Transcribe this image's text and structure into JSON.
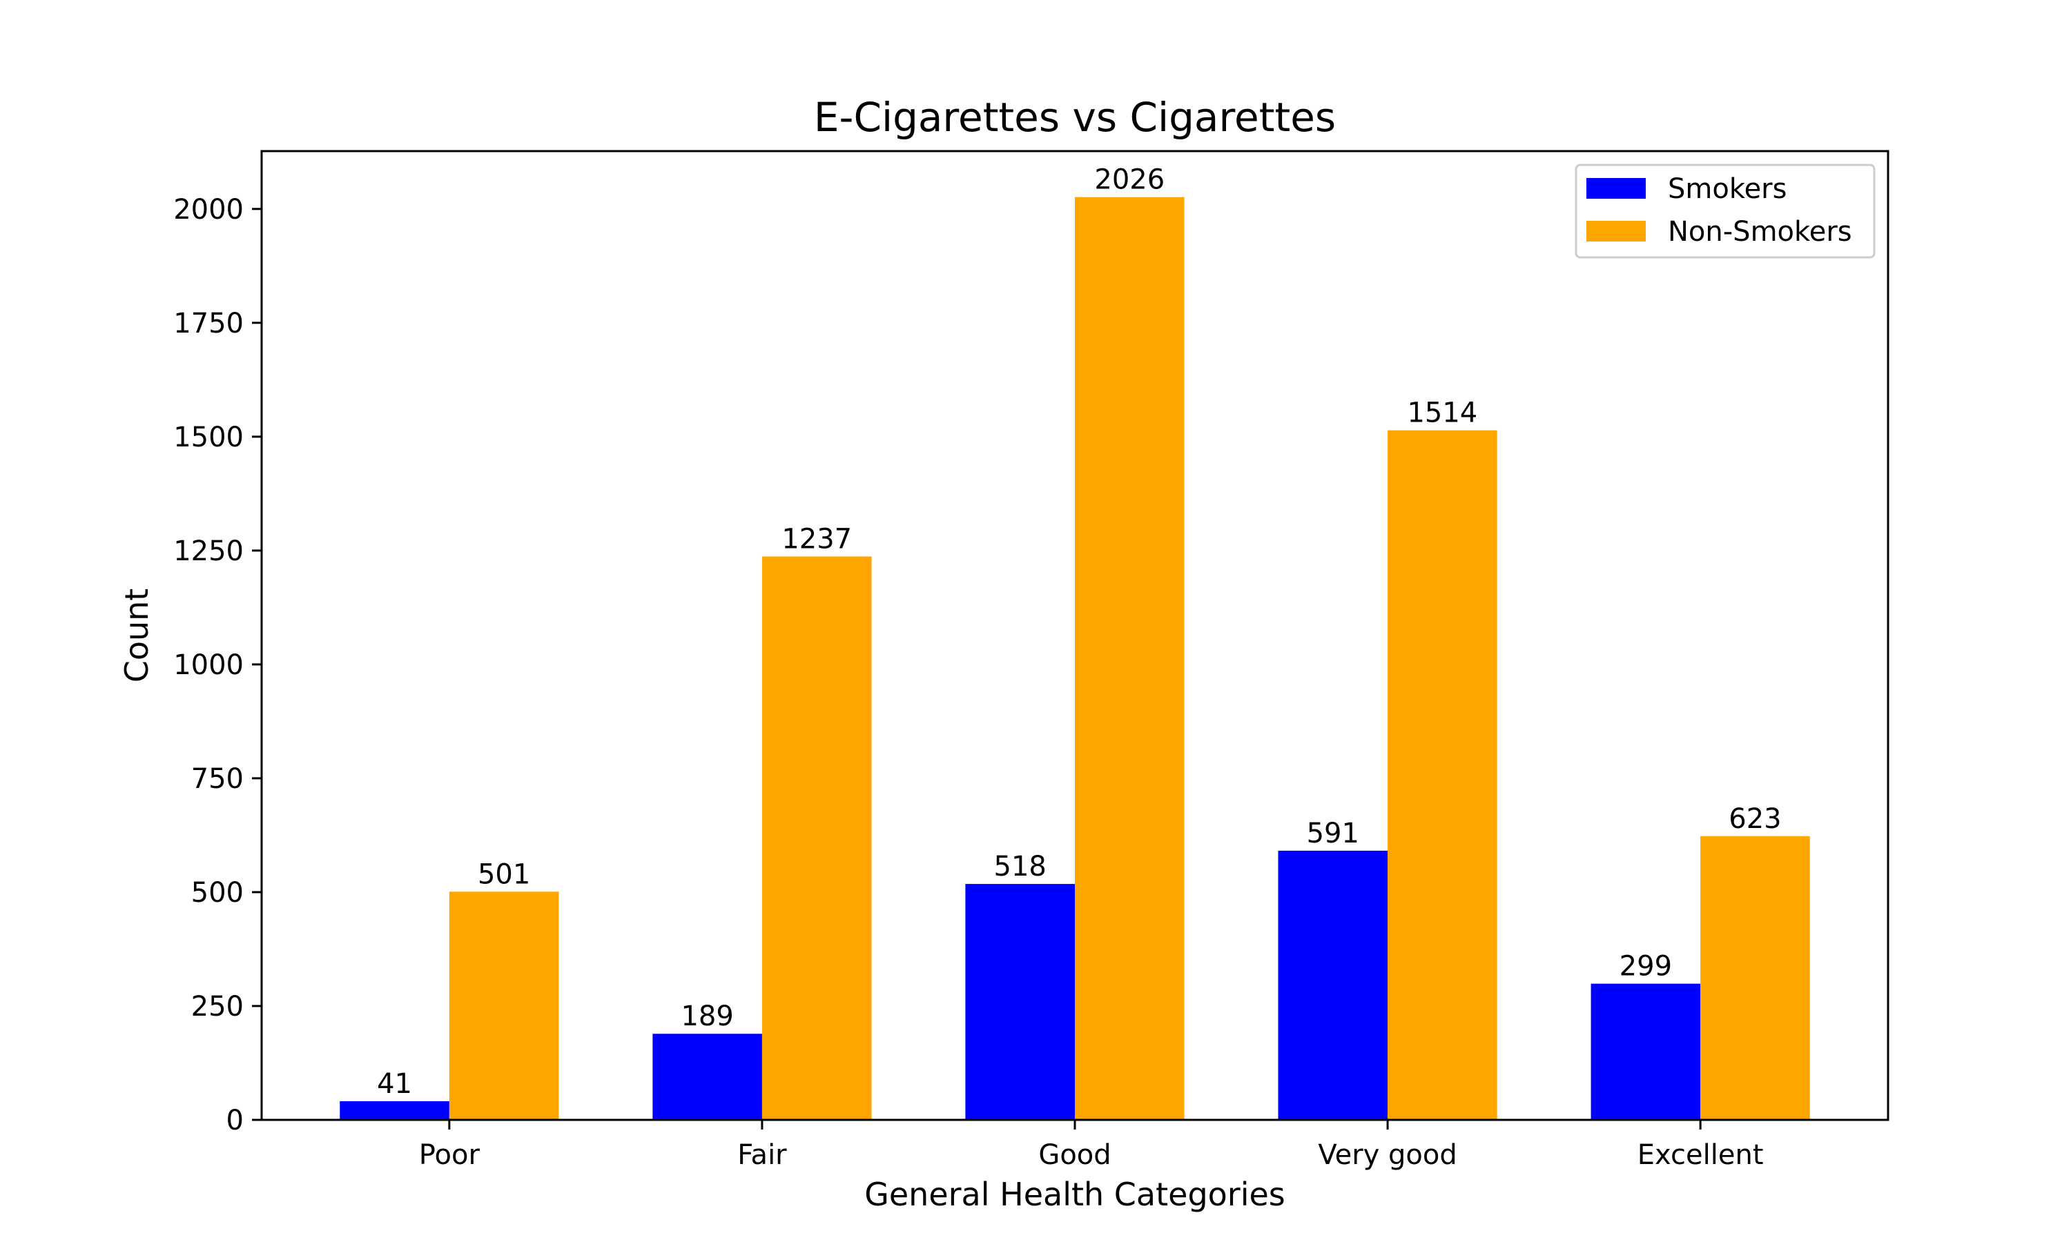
{
  "chart_data": {
    "type": "bar",
    "title": "E-Cigarettes vs Cigarettes",
    "xlabel": "General Health Categories",
    "ylabel": "Count",
    "categories": [
      "Poor",
      "Fair",
      "Good",
      "Very good",
      "Excellent"
    ],
    "series": [
      {
        "name": "Smokers",
        "color": "#0000ff",
        "values": [
          41,
          189,
          518,
          591,
          299
        ]
      },
      {
        "name": "Non-Smokers",
        "color": "#ffa500",
        "values": [
          501,
          1237,
          2026,
          1514,
          623
        ]
      }
    ],
    "ylim": [
      0,
      2127
    ],
    "yticks": [
      0,
      250,
      500,
      750,
      1000,
      1250,
      1500,
      1750,
      2000
    ],
    "grid": false,
    "legend_position": "top-right"
  }
}
